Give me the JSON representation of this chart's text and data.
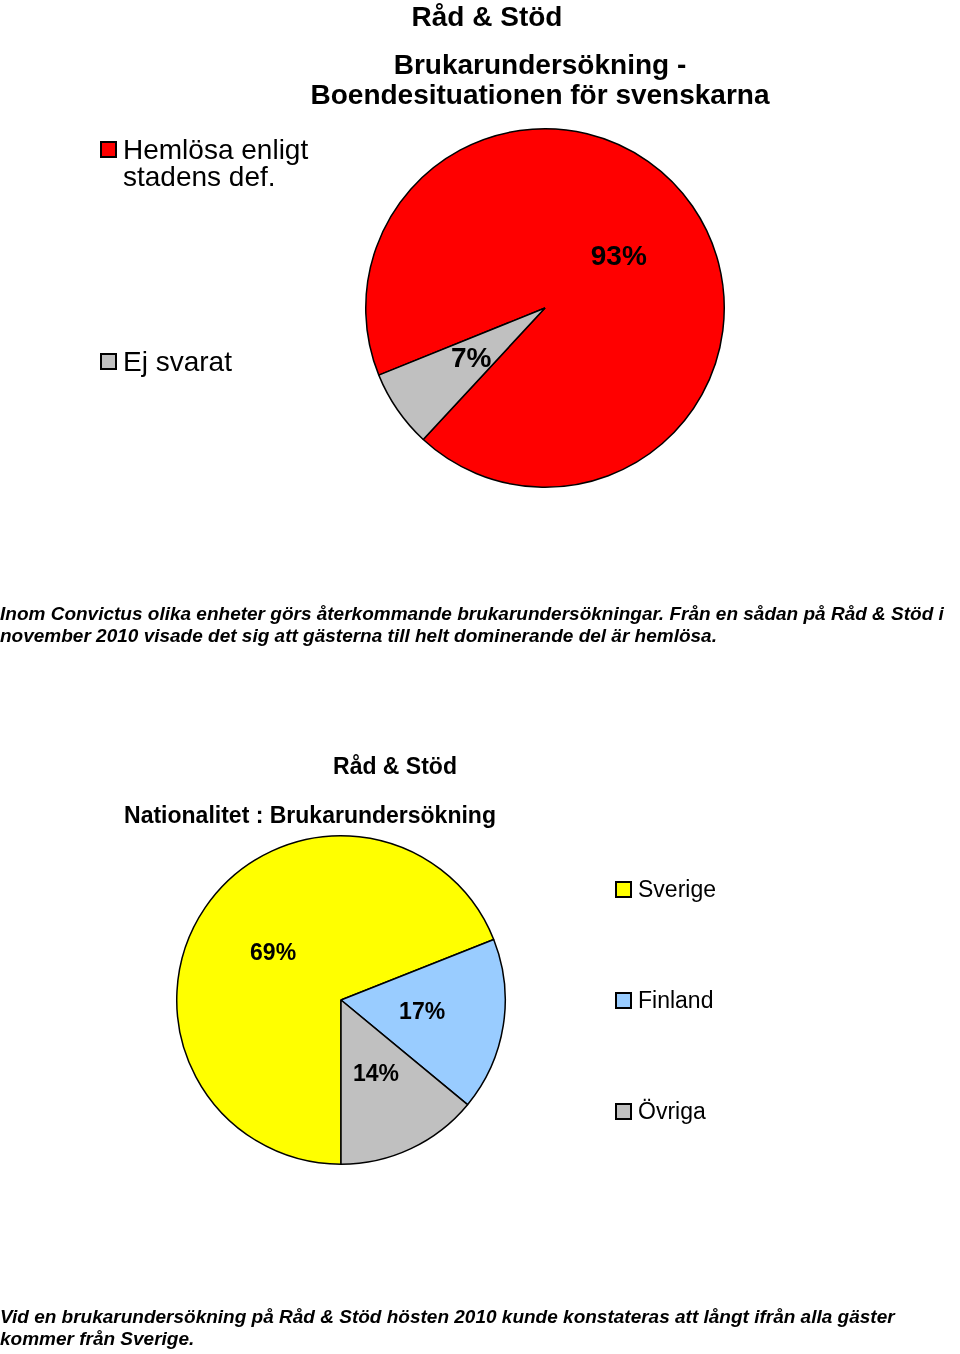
{
  "chart_data": [
    {
      "type": "pie",
      "title": "Råd & Stöd",
      "subtitle": "Brukarundersökning - Boendesituationen för svenskarna",
      "categories": [
        "Hemlösa enligt stadens def.",
        "Ej svarat"
      ],
      "values": [
        93,
        7
      ],
      "colors": [
        "#ff0000",
        "#c0c0c0"
      ],
      "value_labels": [
        "93%",
        "7%"
      ],
      "legend": "left",
      "annotations": [
        "Inom Convictus olika enheter görs återkommande brukarundersökningar. Från en sådan på Råd & Stöd i november 2010 visade det sig att gästerna till helt dominerande del är hemlösa."
      ]
    },
    {
      "type": "pie",
      "title": "Råd & Stöd",
      "subtitle": "Nationalitet : Brukarundersökning",
      "categories": [
        "Sverige",
        "Finland",
        "Övriga"
      ],
      "values": [
        69,
        17,
        14
      ],
      "colors": [
        "#ffff00",
        "#99ccff",
        "#c0c0c0"
      ],
      "value_labels": [
        "69%",
        "17%",
        "14%"
      ],
      "legend": "right",
      "annotations": [
        "Vid en brukarundersökning på Råd & Stöd hösten 2010 kunde konstateras att långt ifrån alla gäster kommer från Sverige."
      ]
    }
  ]
}
